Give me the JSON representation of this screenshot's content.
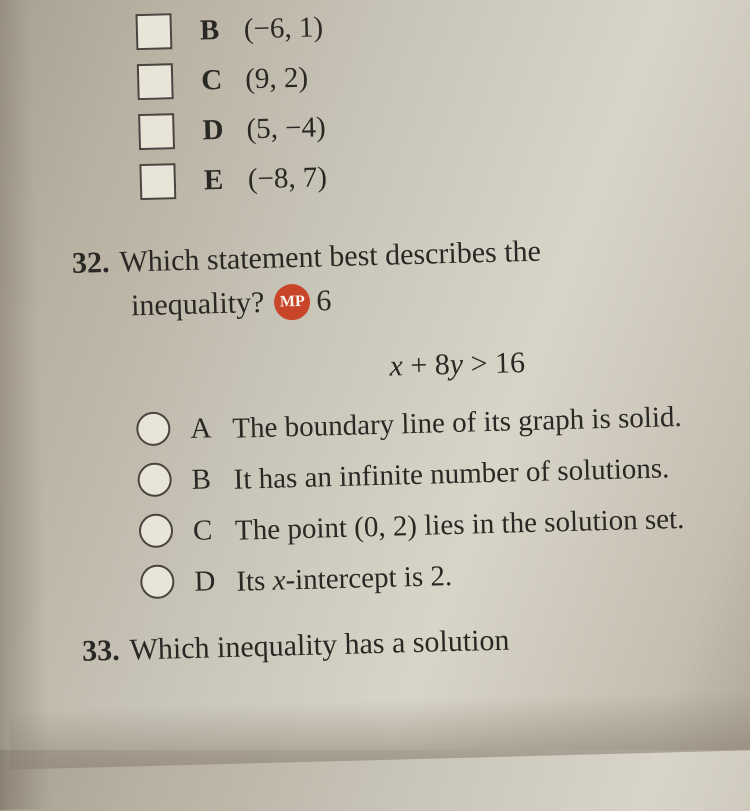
{
  "topOptions": [
    {
      "letter": "B",
      "value": "(−6, 1)"
    },
    {
      "letter": "C",
      "value": "(9, 2)"
    },
    {
      "letter": "D",
      "value": "(5, −4)"
    },
    {
      "letter": "E",
      "value": "(−8, 7)"
    }
  ],
  "q32": {
    "number": "32.",
    "textLine1": "Which statement best describes the",
    "textLine2": "inequality?",
    "mpLabel": "MP",
    "mpNum": "6",
    "inequality": "x + 8y > 16",
    "answers": [
      {
        "letter": "A",
        "text": "The boundary line of its graph is solid."
      },
      {
        "letter": "B",
        "text": "It has an infinite number of solutions."
      },
      {
        "letter": "C",
        "text": "The point (0, 2) lies in the solution set."
      },
      {
        "letter": "D",
        "text": "Its x-intercept is 2."
      }
    ]
  },
  "q33": {
    "number": "33.",
    "textPartial": "Which inequality has a solution"
  },
  "colors": {
    "text": "#2a2824",
    "mpBadgeBg": "#c8452a",
    "mpBadgeFg": "#f8f4e8",
    "checkboxBorder": "#4a4440",
    "checkboxFill": "#e8e4d8"
  }
}
